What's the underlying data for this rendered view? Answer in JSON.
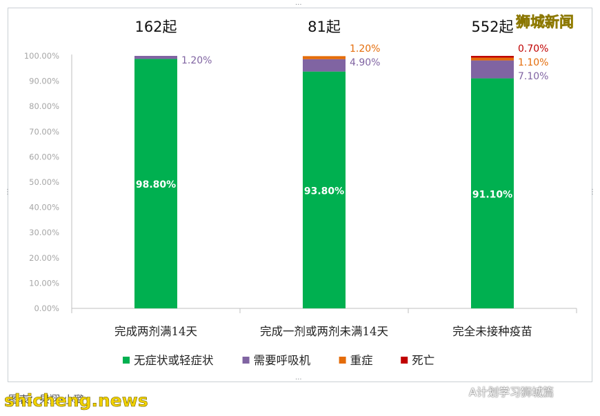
{
  "chart_data": {
    "type": "bar",
    "stacked": true,
    "categories": [
      "完成两剂满14天",
      "完成一剂或两剂未满14天",
      "完全未接种疫苗"
    ],
    "category_totals": [
      "162起",
      "81起",
      "552起"
    ],
    "ylim": [
      0,
      100
    ],
    "yticks": [
      "0.00%",
      "10.00%",
      "20.00%",
      "30.00%",
      "40.00%",
      "50.00%",
      "60.00%",
      "70.00%",
      "80.00%",
      "90.00%",
      "100.00%"
    ],
    "grid": false,
    "legend_position": "bottom",
    "series": [
      {
        "name": "无症状或轻症状",
        "color": "#00b050",
        "values": [
          98.8,
          93.8,
          91.1
        ],
        "labels": [
          "98.80%",
          "93.80%",
          "91.10%"
        ]
      },
      {
        "name": "需要呼吸机",
        "color": "#8064a2",
        "values": [
          1.2,
          4.9,
          7.1
        ],
        "labels": [
          "1.20%",
          "4.90%",
          "7.10%"
        ]
      },
      {
        "name": "重症",
        "color": "#e46c0a",
        "values": [
          0,
          1.2,
          1.1
        ],
        "labels": [
          "",
          "1.20%",
          "1.10%"
        ]
      },
      {
        "name": "死亡",
        "color": "#c00000",
        "values": [
          0,
          0,
          0.7
        ],
        "labels": [
          "",
          "",
          "0.70%"
        ]
      }
    ]
  },
  "overlay": {
    "watermark_top": "狮城新闻",
    "caption_source": "图表：果翔·小璐",
    "watermark_bottom": "shicheng.news",
    "wechat_credit": "A计划学习狮城篇",
    "wechat_icon": "wechat-icon"
  }
}
